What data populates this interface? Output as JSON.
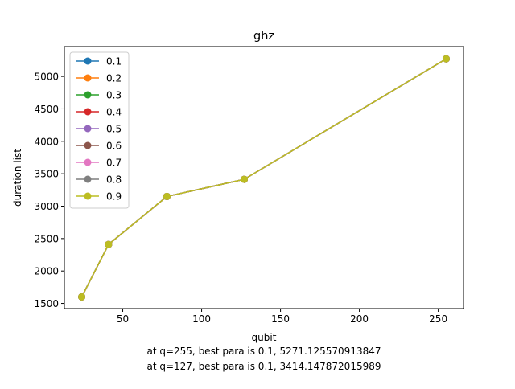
{
  "chart_data": {
    "type": "line",
    "title": "ghz",
    "xlabel": "qubit",
    "ylabel": "duration list",
    "xlim": [
      13,
      266
    ],
    "ylim": [
      1420,
      5460
    ],
    "xticks": [
      50,
      100,
      150,
      200,
      250
    ],
    "yticks": [
      1500,
      2000,
      2500,
      3000,
      3500,
      4000,
      4500,
      5000
    ],
    "grid": false,
    "legend_position": "upper-left",
    "x": [
      24,
      41,
      78,
      127,
      255
    ],
    "series": [
      {
        "name": "0.1",
        "color": "#1f77b4",
        "values": [
          1600,
          2410,
          3150,
          3414.147872015989,
          5271.125570913847
        ]
      },
      {
        "name": "0.2",
        "color": "#ff7f0e",
        "values": [
          1600,
          2410,
          3150,
          3414.147872015989,
          5271.125570913847
        ]
      },
      {
        "name": "0.3",
        "color": "#2ca02c",
        "values": [
          1600,
          2410,
          3150,
          3414.147872015989,
          5271.125570913847
        ]
      },
      {
        "name": "0.4",
        "color": "#d62728",
        "values": [
          1600,
          2410,
          3150,
          3414.147872015989,
          5271.125570913847
        ]
      },
      {
        "name": "0.5",
        "color": "#9467bd",
        "values": [
          1600,
          2410,
          3150,
          3414.147872015989,
          5271.125570913847
        ]
      },
      {
        "name": "0.6",
        "color": "#8c564b",
        "values": [
          1600,
          2410,
          3150,
          3414.147872015989,
          5271.125570913847
        ]
      },
      {
        "name": "0.7",
        "color": "#e377c2",
        "values": [
          1600,
          2410,
          3150,
          3414.147872015989,
          5271.125570913847
        ]
      },
      {
        "name": "0.8",
        "color": "#7f7f7f",
        "values": [
          1600,
          2410,
          3150,
          3414.147872015989,
          5271.125570913847
        ]
      },
      {
        "name": "0.9",
        "color": "#bcbd22",
        "values": [
          1600,
          2410,
          3150,
          3414.147872015989,
          5271.125570913847
        ]
      }
    ],
    "annotations": [
      "at q=255, best para is 0.1, 5271.125570913847",
      "at q=127, best para is 0.1, 3414.147872015989"
    ]
  }
}
